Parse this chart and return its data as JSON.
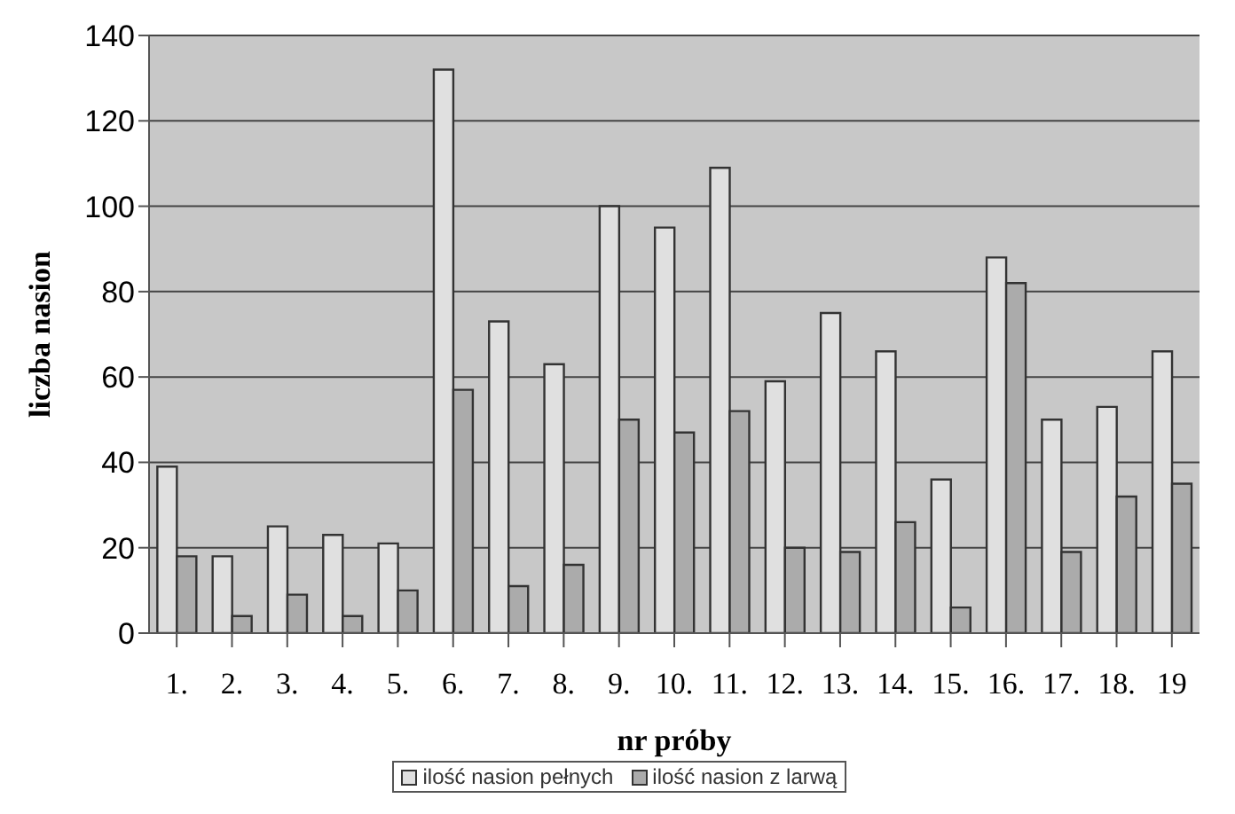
{
  "chart_data": {
    "type": "bar",
    "xlabel": "nr  próby",
    "ylabel": "liczba nasion",
    "categories": [
      "1.",
      "2.",
      "3.",
      "4.",
      "5.",
      "6.",
      "7.",
      "8.",
      "9.",
      "10.",
      "11.",
      "12.",
      "13.",
      "14.",
      "15.",
      "16.",
      "17.",
      "18.",
      "19"
    ],
    "series": [
      {
        "name": "ilość nasion pełnych",
        "color": "#e0e0e0",
        "values": [
          39,
          18,
          25,
          23,
          21,
          132,
          73,
          63,
          100,
          95,
          109,
          59,
          75,
          66,
          36,
          88,
          50,
          53,
          66
        ]
      },
      {
        "name": "ilość nasion z larwą",
        "color": "#ababab",
        "values": [
          18,
          4,
          9,
          4,
          10,
          57,
          11,
          16,
          50,
          47,
          52,
          20,
          19,
          26,
          6,
          82,
          19,
          32,
          35
        ]
      }
    ],
    "ylim": [
      0,
      140
    ],
    "yticks": [
      0,
      20,
      40,
      60,
      80,
      100,
      120,
      140
    ],
    "grid": "y",
    "legend": "bottom"
  }
}
